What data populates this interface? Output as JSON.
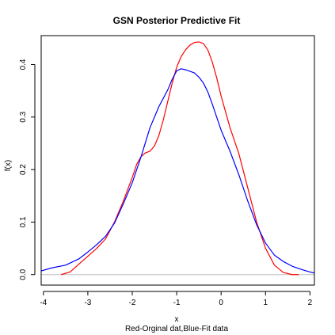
{
  "chart_data": {
    "type": "line",
    "title": "GSN Posterior Predictive Fit",
    "xlabel": "x",
    "ylabel": "f(x)",
    "caption": "Red-Orginal dat,Blue-Fit data",
    "xlim": [
      -4.05,
      2.1
    ],
    "ylim": [
      -0.02,
      0.455
    ],
    "x_ticks": [
      -4,
      -3,
      -2,
      -1,
      0,
      1,
      2
    ],
    "x_tick_labels": [
      "-4",
      "-3",
      "-2",
      "-1",
      "0",
      "1",
      "2"
    ],
    "y_ticks": [
      0.0,
      0.1,
      0.2,
      0.3,
      0.4
    ],
    "y_tick_labels": [
      "0.0",
      "0.1",
      "0.2",
      "0.3",
      "0.4"
    ],
    "baseline": 0,
    "grid": false,
    "legend": "none",
    "series": [
      {
        "color": "#ff0000",
        "x": [
          -3.6,
          -3.4,
          -3.2,
          -3.0,
          -2.8,
          -2.6,
          -2.4,
          -2.2,
          -2.0,
          -1.9,
          -1.8,
          -1.7,
          -1.6,
          -1.5,
          -1.4,
          -1.3,
          -1.2,
          -1.1,
          -1.0,
          -0.9,
          -0.8,
          -0.7,
          -0.6,
          -0.5,
          -0.4,
          -0.3,
          -0.2,
          -0.1,
          0.0,
          0.2,
          0.4,
          0.6,
          0.8,
          1.0,
          1.2,
          1.4,
          1.6,
          1.75
        ],
        "y": [
          0.0,
          0.005,
          0.02,
          0.035,
          0.05,
          0.068,
          0.1,
          0.14,
          0.185,
          0.21,
          0.225,
          0.232,
          0.235,
          0.245,
          0.265,
          0.295,
          0.33,
          0.365,
          0.395,
          0.415,
          0.428,
          0.437,
          0.442,
          0.443,
          0.44,
          0.428,
          0.405,
          0.375,
          0.34,
          0.28,
          0.23,
          0.165,
          0.1,
          0.05,
          0.018,
          0.004,
          0.0,
          0.0
        ]
      },
      {
        "color": "#0000ff",
        "x": [
          -4.05,
          -3.8,
          -3.5,
          -3.2,
          -3.0,
          -2.8,
          -2.6,
          -2.4,
          -2.2,
          -2.0,
          -1.8,
          -1.6,
          -1.4,
          -1.2,
          -1.1,
          -1.0,
          -0.9,
          -0.8,
          -0.7,
          -0.6,
          -0.5,
          -0.4,
          -0.3,
          -0.2,
          -0.1,
          0.0,
          0.2,
          0.4,
          0.6,
          0.8,
          1.0,
          1.2,
          1.4,
          1.6,
          1.8,
          2.0,
          2.1
        ],
        "y": [
          0.007,
          0.013,
          0.018,
          0.03,
          0.043,
          0.057,
          0.073,
          0.098,
          0.135,
          0.175,
          0.225,
          0.28,
          0.32,
          0.352,
          0.372,
          0.388,
          0.392,
          0.39,
          0.387,
          0.384,
          0.376,
          0.365,
          0.348,
          0.325,
          0.3,
          0.275,
          0.235,
          0.19,
          0.14,
          0.095,
          0.06,
          0.037,
          0.025,
          0.016,
          0.01,
          0.005,
          0.003
        ]
      }
    ]
  }
}
